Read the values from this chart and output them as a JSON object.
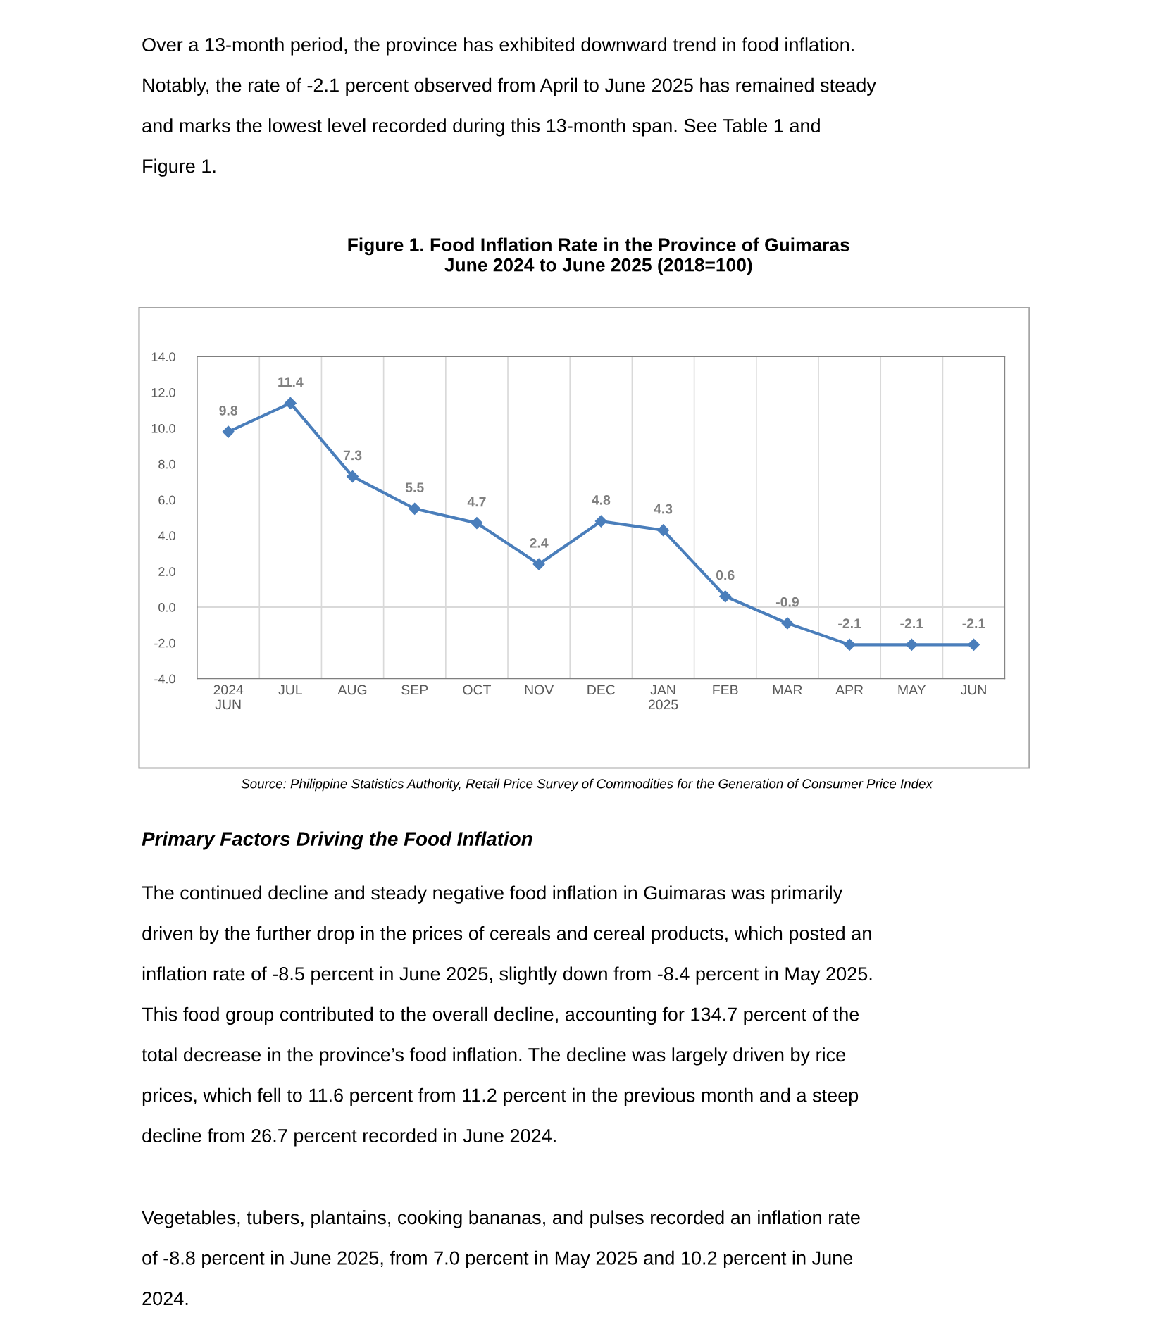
{
  "chart_data": {
    "type": "line",
    "title": "Figure 1. Food Inflation Rate in the Province of Guimaras\nJune 2024 to June 2025 (2018=100)",
    "categories": [
      "2024\nJUN",
      "JUL",
      "AUG",
      "SEP",
      "OCT",
      "NOV",
      "DEC",
      "JAN\n2025",
      "FEB",
      "MAR",
      "APR",
      "MAY",
      "JUN"
    ],
    "series": [
      {
        "color": "#4a7ebb",
        "values": [
          9.8,
          11.4,
          7.3,
          5.5,
          4.7,
          2.4,
          4.8,
          4.3,
          0.6,
          -0.9,
          -2.1,
          -2.1,
          -2.1
        ]
      }
    ],
    "ylim": [
      -4,
      14
    ],
    "yticks": [
      {
        "value": -4,
        "label": "-4.0"
      },
      {
        "value": -2,
        "label": "-2.0"
      },
      {
        "value": 0,
        "label": "0.0"
      },
      {
        "value": 2,
        "label": "2.0"
      },
      {
        "value": 4,
        "label": "4.0"
      },
      {
        "value": 6,
        "label": "6.0"
      },
      {
        "value": 8,
        "label": "8.0"
      },
      {
        "value": 10,
        "label": "10.0"
      },
      {
        "value": 12,
        "label": "12.0"
      },
      {
        "value": 14,
        "label": "14.0"
      }
    ],
    "ref_lines": [
      {
        "axis": "y",
        "value": 0,
        "color": "#d9d9d9"
      }
    ],
    "grid": "x",
    "marker": "diamond",
    "line_style": "solid",
    "data_labels": true,
    "legend": false,
    "annotations": [
      "Over a 13-month period, the province has exhibited downward trend in food inflation.",
      "Notably, the rate of -2.1 percent observed from April to June 2025 has remained steady",
      "and marks the lowest level recorded during this 13-month span. See Table 1 and",
      "Figure 1.",
      "Source: Philippine Statistics Authority, Retail Price Survey of Commodities for the Generation of Consumer Price Index",
      "Primary Factors Driving the Food Inflation",
      "The continued decline and steady negative food inflation in Guimaras was primarily",
      "driven by the further drop in the prices of cereals and cereal products, which posted an",
      "inflation rate of -8.5 percent in June 2025, slightly down from -8.4 percent in May 2025.",
      "This food group contributed to the overall decline, accounting for 134.7 percent of the",
      "total decrease in the province’s food inflation. The decline was largely driven by rice",
      "prices, which fell to 11.6 percent from 11.2 percent in the previous month and a steep",
      "decline from 26.7 percent recorded in June 2024.",
      "Vegetables, tubers, plantains, cooking bananas, and pulses recorded an inflation rate",
      "of -8.8 percent in June 2025, from 7.0 percent in May 2025 and 10.2 percent in June",
      "2024."
    ]
  }
}
